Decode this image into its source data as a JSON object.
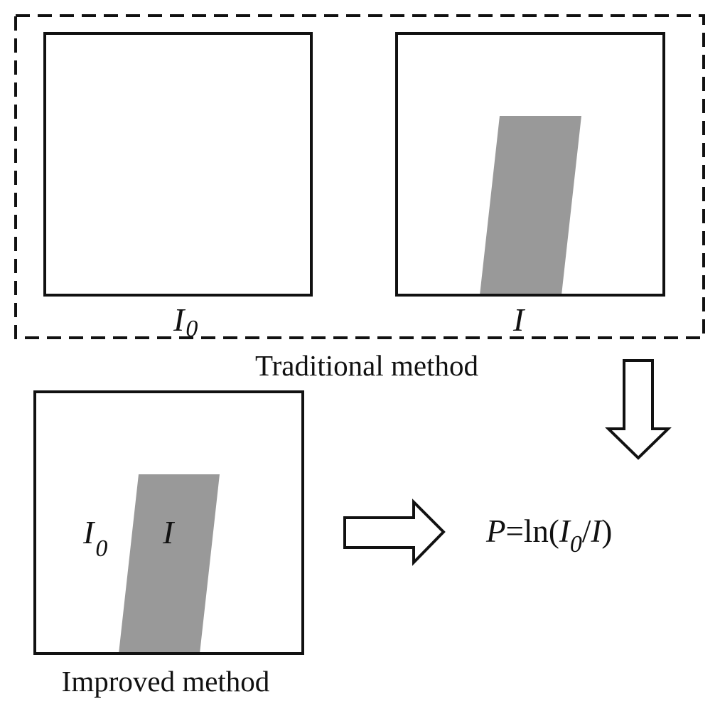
{
  "traditional": {
    "caption": "Traditional method",
    "reference_label": {
      "base": "I",
      "subscript": "0"
    },
    "sample_label": {
      "base": "I"
    }
  },
  "improved": {
    "caption": "Improved method",
    "background_label": {
      "base": "I",
      "subscript": "0"
    },
    "sample_label": {
      "base": "I"
    }
  },
  "formula": {
    "lhs": "P",
    "equals": "=",
    "func": "ln(",
    "numerator_base": "I",
    "numerator_subscript": "0",
    "slash": "/",
    "denominator": "I",
    "close": ")"
  },
  "colors": {
    "line": "#111111",
    "sample_fill": "#999999",
    "background": "#ffffff"
  }
}
